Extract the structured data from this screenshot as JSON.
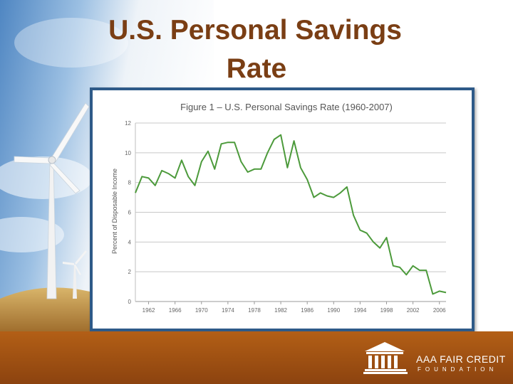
{
  "slide": {
    "title_line1": "U.S. Personal Savings",
    "title_line2": "Rate"
  },
  "logo": {
    "name": "AAA FAIR CREDIT",
    "sub": "FOUNDATION"
  },
  "colors": {
    "title": "#7a3e14",
    "frame": "#2e5a88",
    "line": "#4c9a3b",
    "footer": "#a2541a"
  },
  "chart_data": {
    "type": "line",
    "title": "Figure 1 – U.S. Personal Savings Rate (1960-2007)",
    "xlabel": "",
    "ylabel": "Percent of Disposable Income",
    "xlim": [
      1960,
      2007
    ],
    "ylim": [
      0,
      12
    ],
    "yticks": [
      0,
      2,
      4,
      6,
      8,
      10,
      12
    ],
    "xticks": [
      1962,
      1966,
      1970,
      1974,
      1978,
      1982,
      1986,
      1990,
      1994,
      1998,
      2002,
      2006
    ],
    "grid": true,
    "series": [
      {
        "x": [
          1960,
          1961,
          1962,
          1963,
          1964,
          1965,
          1966,
          1967,
          1968,
          1969,
          1970,
          1971,
          1972,
          1973,
          1974,
          1975,
          1976,
          1977,
          1978,
          1979,
          1980,
          1981,
          1982,
          1983,
          1984,
          1985,
          1986,
          1987,
          1988,
          1989,
          1990,
          1991,
          1992,
          1993,
          1994,
          1995,
          1996,
          1997,
          1998,
          1999,
          2000,
          2001,
          2002,
          2003,
          2004,
          2005,
          2006,
          2007
        ],
        "values": [
          7.3,
          8.4,
          8.3,
          7.8,
          8.8,
          8.6,
          8.3,
          9.5,
          8.4,
          7.8,
          9.4,
          10.1,
          8.9,
          10.6,
          10.7,
          10.7,
          9.4,
          8.7,
          8.9,
          8.9,
          10.0,
          10.9,
          11.2,
          9.0,
          10.8,
          9.0,
          8.2,
          7.0,
          7.3,
          7.1,
          7.0,
          7.3,
          7.7,
          5.8,
          4.8,
          4.6,
          4.0,
          3.6,
          4.3,
          2.4,
          2.3,
          1.8,
          2.4,
          2.1,
          2.1,
          0.5,
          0.7,
          0.6
        ]
      }
    ]
  }
}
